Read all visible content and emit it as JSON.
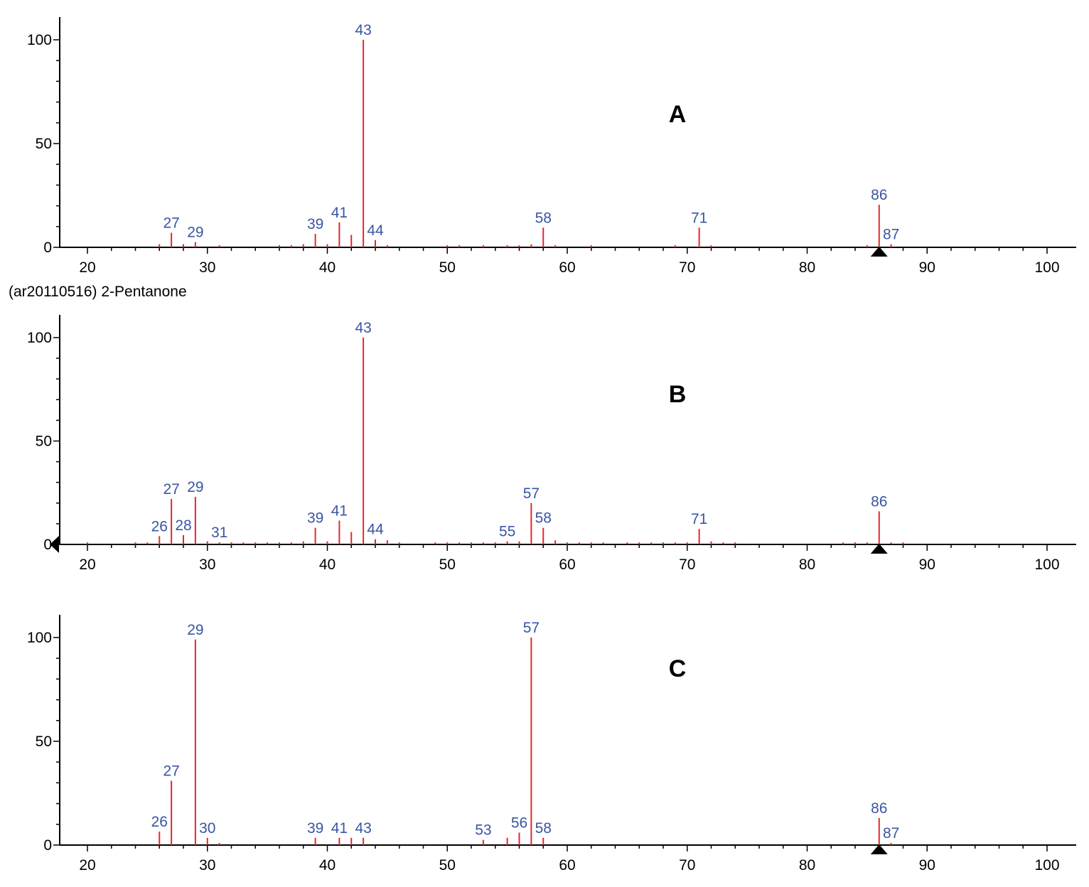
{
  "colors": {
    "stick": "#e8262d",
    "label": "#3a55a4",
    "axis": "#000000"
  },
  "chart_data": [
    {
      "type": "bar",
      "panel_label": "A",
      "xlim": [
        18,
        102
      ],
      "ylim": [
        0,
        100
      ],
      "x_ticks": [
        20,
        30,
        40,
        50,
        60,
        70,
        80,
        90,
        100
      ],
      "y_ticks": [
        0,
        50,
        100
      ],
      "marker_x": 86,
      "peaks": [
        {
          "mz": 26,
          "intensity": 1.5
        },
        {
          "mz": 27,
          "intensity": 7,
          "label": "27"
        },
        {
          "mz": 28,
          "intensity": 1.5
        },
        {
          "mz": 29,
          "intensity": 2.5,
          "label": "29"
        },
        {
          "mz": 31,
          "intensity": 1
        },
        {
          "mz": 36,
          "intensity": 1
        },
        {
          "mz": 37,
          "intensity": 1
        },
        {
          "mz": 38,
          "intensity": 1.5
        },
        {
          "mz": 39,
          "intensity": 6.5,
          "label": "39"
        },
        {
          "mz": 40,
          "intensity": 1.5
        },
        {
          "mz": 41,
          "intensity": 12,
          "label": "41"
        },
        {
          "mz": 42,
          "intensity": 6
        },
        {
          "mz": 43,
          "intensity": 100,
          "label": "43"
        },
        {
          "mz": 44,
          "intensity": 3.5,
          "label": "44"
        },
        {
          "mz": 45,
          "intensity": 1
        },
        {
          "mz": 50,
          "intensity": 1
        },
        {
          "mz": 51,
          "intensity": 1
        },
        {
          "mz": 53,
          "intensity": 1
        },
        {
          "mz": 55,
          "intensity": 1
        },
        {
          "mz": 56,
          "intensity": 1
        },
        {
          "mz": 57,
          "intensity": 1.5
        },
        {
          "mz": 58,
          "intensity": 9.5,
          "label": "58"
        },
        {
          "mz": 59,
          "intensity": 1
        },
        {
          "mz": 62,
          "intensity": 1
        },
        {
          "mz": 69,
          "intensity": 1
        },
        {
          "mz": 71,
          "intensity": 9.5,
          "label": "71"
        },
        {
          "mz": 72,
          "intensity": 1
        },
        {
          "mz": 85,
          "intensity": 1
        },
        {
          "mz": 86,
          "intensity": 20.5,
          "label": "86"
        },
        {
          "mz": 87,
          "intensity": 1.5,
          "label": "87"
        }
      ]
    },
    {
      "type": "bar",
      "title": "(ar20110516) 2-Pentanone",
      "panel_label": "B",
      "xlim": [
        18,
        102
      ],
      "ylim": [
        0,
        100
      ],
      "x_ticks": [
        20,
        30,
        40,
        50,
        60,
        70,
        80,
        90,
        100
      ],
      "y_ticks": [
        0,
        50,
        100
      ],
      "marker_x": 86,
      "left_marker": true,
      "peaks": [
        {
          "mz": 20,
          "intensity": 1
        },
        {
          "mz": 24,
          "intensity": 1
        },
        {
          "mz": 25,
          "intensity": 1
        },
        {
          "mz": 26,
          "intensity": 4,
          "label": "26"
        },
        {
          "mz": 27,
          "intensity": 22,
          "label": "27"
        },
        {
          "mz": 28,
          "intensity": 4.5,
          "label": "28"
        },
        {
          "mz": 29,
          "intensity": 23,
          "label": "29"
        },
        {
          "mz": 30,
          "intensity": 1.5
        },
        {
          "mz": 31,
          "intensity": 1,
          "label": "31"
        },
        {
          "mz": 32,
          "intensity": 1
        },
        {
          "mz": 33,
          "intensity": 1
        },
        {
          "mz": 34,
          "intensity": 1
        },
        {
          "mz": 35,
          "intensity": 1
        },
        {
          "mz": 36,
          "intensity": 1
        },
        {
          "mz": 37,
          "intensity": 1
        },
        {
          "mz": 38,
          "intensity": 1.5
        },
        {
          "mz": 39,
          "intensity": 8,
          "label": "39"
        },
        {
          "mz": 40,
          "intensity": 1.5
        },
        {
          "mz": 41,
          "intensity": 11.5,
          "label": "41"
        },
        {
          "mz": 42,
          "intensity": 6
        },
        {
          "mz": 43,
          "intensity": 100,
          "label": "43"
        },
        {
          "mz": 44,
          "intensity": 2.5,
          "label": "44"
        },
        {
          "mz": 45,
          "intensity": 2
        },
        {
          "mz": 46,
          "intensity": 1
        },
        {
          "mz": 49,
          "intensity": 1
        },
        {
          "mz": 50,
          "intensity": 1
        },
        {
          "mz": 51,
          "intensity": 1
        },
        {
          "mz": 52,
          "intensity": 1
        },
        {
          "mz": 53,
          "intensity": 1
        },
        {
          "mz": 54,
          "intensity": 1
        },
        {
          "mz": 55,
          "intensity": 1.5,
          "label": "55"
        },
        {
          "mz": 56,
          "intensity": 1.5
        },
        {
          "mz": 57,
          "intensity": 20,
          "label": "57"
        },
        {
          "mz": 58,
          "intensity": 8,
          "label": "58"
        },
        {
          "mz": 59,
          "intensity": 2
        },
        {
          "mz": 60,
          "intensity": 1
        },
        {
          "mz": 61,
          "intensity": 1
        },
        {
          "mz": 62,
          "intensity": 1
        },
        {
          "mz": 63,
          "intensity": 1
        },
        {
          "mz": 65,
          "intensity": 1
        },
        {
          "mz": 66,
          "intensity": 1
        },
        {
          "mz": 67,
          "intensity": 1
        },
        {
          "mz": 68,
          "intensity": 1
        },
        {
          "mz": 69,
          "intensity": 1
        },
        {
          "mz": 70,
          "intensity": 1
        },
        {
          "mz": 71,
          "intensity": 7.5,
          "label": "71"
        },
        {
          "mz": 72,
          "intensity": 1.5
        },
        {
          "mz": 73,
          "intensity": 1
        },
        {
          "mz": 74,
          "intensity": 1
        },
        {
          "mz": 83,
          "intensity": 1
        },
        {
          "mz": 84,
          "intensity": 1
        },
        {
          "mz": 85,
          "intensity": 1
        },
        {
          "mz": 86,
          "intensity": 16,
          "label": "86"
        },
        {
          "mz": 87,
          "intensity": 1
        },
        {
          "mz": 88,
          "intensity": 1
        }
      ]
    },
    {
      "type": "bar",
      "panel_label": "C",
      "xlim": [
        18,
        102
      ],
      "ylim": [
        0,
        100
      ],
      "x_ticks": [
        20,
        30,
        40,
        50,
        60,
        70,
        80,
        90,
        100
      ],
      "y_ticks": [
        0,
        50,
        100
      ],
      "marker_x": 86,
      "peaks": [
        {
          "mz": 26,
          "intensity": 6.5,
          "label": "26"
        },
        {
          "mz": 27,
          "intensity": 31,
          "label": "27"
        },
        {
          "mz": 29,
          "intensity": 99,
          "label": "29"
        },
        {
          "mz": 30,
          "intensity": 3.5,
          "label": "30"
        },
        {
          "mz": 31,
          "intensity": 1
        },
        {
          "mz": 39,
          "intensity": 3.5,
          "label": "39"
        },
        {
          "mz": 41,
          "intensity": 3.5,
          "label": "41"
        },
        {
          "mz": 42,
          "intensity": 3.5
        },
        {
          "mz": 43,
          "intensity": 3.5,
          "label": "43"
        },
        {
          "mz": 53,
          "intensity": 2.5,
          "label": "53"
        },
        {
          "mz": 55,
          "intensity": 3.5
        },
        {
          "mz": 56,
          "intensity": 6,
          "label": "56"
        },
        {
          "mz": 57,
          "intensity": 100,
          "label": "57"
        },
        {
          "mz": 58,
          "intensity": 3.5,
          "label": "58"
        },
        {
          "mz": 86,
          "intensity": 13,
          "label": "86"
        },
        {
          "mz": 87,
          "intensity": 1,
          "label": "87"
        }
      ]
    }
  ]
}
